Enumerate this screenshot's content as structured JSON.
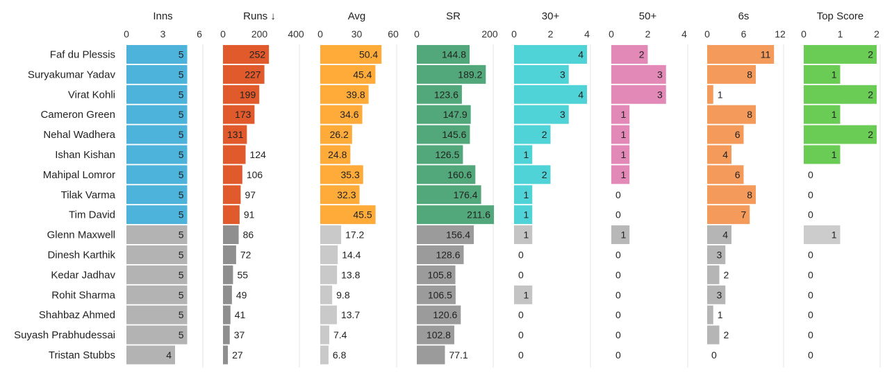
{
  "chart_data": {
    "type": "bar",
    "orientation": "horizontal",
    "players": [
      "Faf du Plessis",
      "Suryakumar Yadav",
      "Virat Kohli",
      "Cameron Green",
      "Nehal Wadhera",
      "Ishan Kishan",
      "Mahipal Lomror",
      "Tilak Varma",
      "Tim David",
      "Glenn Maxwell",
      "Dinesh Karthik",
      "Kedar Jadhav",
      "Rohit Sharma",
      "Shahbaz Ahmed",
      "Suyash Prabhudessai",
      "Tristan Stubbs"
    ],
    "columns": [
      {
        "label": "Inns",
        "max": 6,
        "ticks": [
          "0",
          "3",
          "6"
        ],
        "color": "#4db3db",
        "colored_rows": 9,
        "values": [
          5,
          5,
          5,
          5,
          5,
          5,
          5,
          5,
          5,
          5,
          5,
          5,
          5,
          5,
          5,
          4
        ],
        "labels": [
          "5",
          "5",
          "5",
          "5",
          "5",
          "5",
          "5",
          "5",
          "5",
          "5",
          "5",
          "5",
          "5",
          "5",
          "5",
          "4"
        ]
      },
      {
        "label": "Runs ↓",
        "max": 400,
        "ticks": [
          "0",
          "200",
          "400"
        ],
        "color": "#e05a2b",
        "colored_rows": 9,
        "values": [
          252,
          227,
          199,
          173,
          131,
          124,
          106,
          97,
          91,
          86,
          72,
          55,
          49,
          41,
          37,
          27
        ],
        "labels": [
          "252",
          "227",
          "199",
          "173",
          "131",
          "124",
          "106",
          "97",
          "91",
          "86",
          "72",
          "55",
          "49",
          "41",
          "37",
          "27"
        ]
      },
      {
        "label": "Avg",
        "max": 60,
        "ticks": [
          "0",
          "30",
          "60"
        ],
        "color": "#ffab3a",
        "colored_rows": 9,
        "values": [
          50.4,
          45.4,
          39.8,
          34.6,
          26.2,
          24.8,
          35.3,
          32.3,
          45.5,
          17.2,
          14.4,
          13.8,
          9.8,
          13.7,
          7.4,
          6.8
        ],
        "labels": [
          "50.4",
          "45.4",
          "39.8",
          "34.6",
          "26.2",
          "24.8",
          "35.3",
          "32.3",
          "45.5",
          "17.2",
          "14.4",
          "13.8",
          "9.8",
          "13.7",
          "7.4",
          "6.8"
        ]
      },
      {
        "label": "SR",
        "max": 200,
        "ticks": [
          "0",
          "200"
        ],
        "color": "#52a87a",
        "colored_rows": 9,
        "values": [
          144.8,
          189.2,
          123.6,
          147.9,
          145.6,
          126.5,
          160.6,
          176.4,
          211.6,
          156.4,
          128.6,
          105.8,
          106.5,
          120.6,
          102.8,
          77.1
        ],
        "labels": [
          "144.8",
          "189.2",
          "123.6",
          "147.9",
          "145.6",
          "126.5",
          "160.6",
          "176.4",
          "211.6",
          "156.4",
          "128.6",
          "105.8",
          "106.5",
          "120.6",
          "102.8",
          "77.1"
        ]
      },
      {
        "label": "30+",
        "max": 4,
        "ticks": [
          "0",
          "2",
          "4"
        ],
        "color": "#4fd3d6",
        "colored_rows": 9,
        "values": [
          4,
          3,
          4,
          3,
          2,
          1,
          2,
          1,
          1,
          1,
          0,
          0,
          1,
          0,
          0,
          0
        ],
        "labels": [
          "4",
          "3",
          "4",
          "3",
          "2",
          "1",
          "2",
          "1",
          "1",
          "1",
          "0",
          "0",
          "1",
          "0",
          "0",
          "0"
        ]
      },
      {
        "label": "50+",
        "max": 4,
        "ticks": [
          "0",
          "2",
          "4"
        ],
        "color": "#e389b8",
        "colored_rows": 9,
        "values": [
          2,
          3,
          3,
          1,
          1,
          1,
          1,
          0,
          0,
          1,
          0,
          0,
          0,
          0,
          0,
          0
        ],
        "labels": [
          "2",
          "3",
          "3",
          "1",
          "1",
          "1",
          "1",
          "0",
          "0",
          "1",
          "0",
          "0",
          "0",
          "0",
          "0",
          "0"
        ]
      },
      {
        "label": "6s",
        "max": 12,
        "ticks": [
          "0",
          "6",
          "12"
        ],
        "color": "#f49a5a",
        "colored_rows": 9,
        "values": [
          11,
          8,
          1,
          8,
          6,
          4,
          6,
          8,
          7,
          4,
          3,
          2,
          3,
          1,
          2,
          0
        ],
        "labels": [
          "11",
          "8",
          "1",
          "8",
          "6",
          "4",
          "6",
          "8",
          "7",
          "4",
          "3",
          "2",
          "3",
          "1",
          "2",
          "0"
        ]
      },
      {
        "label": "Top Score",
        "max": 2,
        "ticks": [
          "0",
          "1",
          "2"
        ],
        "color": "#6acc55",
        "colored_rows": 9,
        "values": [
          2,
          1,
          2,
          1,
          2,
          1,
          0,
          0,
          0,
          1,
          0,
          0,
          0,
          0,
          0,
          0
        ],
        "labels": [
          "2",
          "1",
          "2",
          "1",
          "2",
          "1",
          "0",
          "0",
          "0",
          "1",
          "0",
          "0",
          "0",
          "0",
          "0",
          "0"
        ]
      }
    ]
  }
}
